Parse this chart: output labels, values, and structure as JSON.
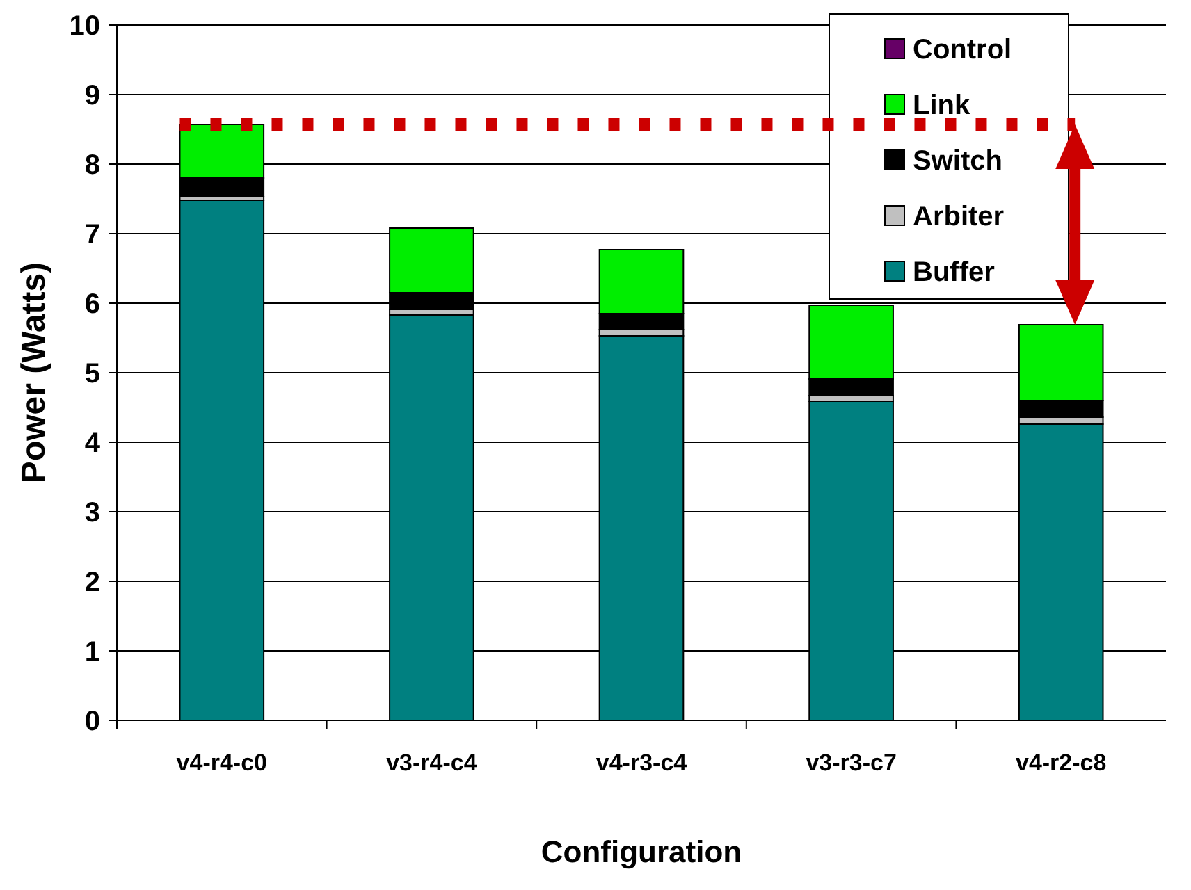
{
  "chart_data": {
    "type": "bar",
    "stacked": true,
    "xlabel": "Configuration",
    "ylabel": "Power (Watts)",
    "categories": [
      "v4-r4-c0",
      "v3-r4-c4",
      "v4-r3-c4",
      "v3-r3-c7",
      "v4-r2-c8"
    ],
    "series": [
      {
        "name": "Buffer",
        "color": "#008080",
        "values": [
          7.48,
          5.83,
          5.53,
          4.59,
          4.26
        ]
      },
      {
        "name": "Arbiter",
        "color": "#c0c0c0",
        "values": [
          0.05,
          0.08,
          0.09,
          0.08,
          0.1
        ]
      },
      {
        "name": "Switch",
        "color": "#000000",
        "values": [
          0.27,
          0.24,
          0.23,
          0.24,
          0.24
        ]
      },
      {
        "name": "Link",
        "color": "#00ee00",
        "values": [
          0.77,
          0.93,
          0.92,
          1.06,
          1.09
        ]
      },
      {
        "name": "Control",
        "color": "#660066",
        "values": [
          0,
          0,
          0,
          0,
          0
        ]
      }
    ],
    "ylim": [
      0,
      10
    ],
    "yticks": [
      0,
      1,
      2,
      3,
      4,
      5,
      6,
      7,
      8,
      9,
      10
    ],
    "grid": "y",
    "legend": "top right",
    "ref_lines": [
      {
        "axis": "y",
        "value": 8.57,
        "color": "#cc0000",
        "line_style": "dotted"
      }
    ]
  }
}
